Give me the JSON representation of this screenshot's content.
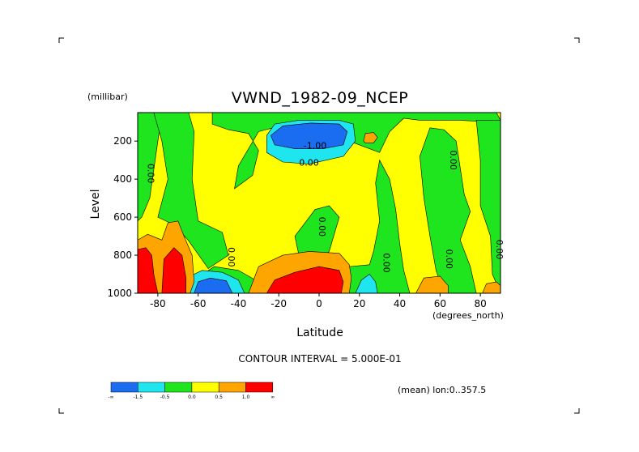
{
  "chart_data": {
    "type": "heatmap",
    "title": "VWND_1982-09_NCEP",
    "xlabel": "Latitude",
    "ylabel": "Level",
    "x_units": "(degrees_north)",
    "y_units": "(millibar)",
    "xlim": [
      -90,
      90
    ],
    "ylim": [
      1000,
      50
    ],
    "x_ticks": [
      "-80",
      "-60",
      "-40",
      "-20",
      "0",
      "20",
      "40",
      "60",
      "80"
    ],
    "x_tick_values": [
      -80,
      -60,
      -40,
      -20,
      0,
      20,
      40,
      60,
      80
    ],
    "y_ticks": [
      "200",
      "400",
      "600",
      "800",
      "1000"
    ],
    "y_tick_values": [
      200,
      400,
      600,
      800,
      1000
    ],
    "contour_interval_label": "CONTOUR INTERVAL = 5.000E-01",
    "subtitle_right": "(mean) lon:0..357.5",
    "colorbar": {
      "labels": [
        "-∞",
        "-1.5",
        "-0.5",
        "0.0",
        "0.5",
        "1.0",
        "∞"
      ],
      "colors": [
        "#1a6cf0",
        "#1ee5ee",
        "#1ee51e",
        "#ffff00",
        "#ffa500",
        "#ff0000"
      ]
    },
    "contour_labels": [
      {
        "text": "0.00",
        "x": -85,
        "y": 370
      },
      {
        "text": "-1.00",
        "x": -2,
        "y": 240
      },
      {
        "text": "0.00",
        "x": -5,
        "y": 330
      },
      {
        "text": "0.00",
        "x": 0,
        "y": 650
      },
      {
        "text": "0.00",
        "x": -45,
        "y": 810
      },
      {
        "text": "0.00",
        "x": 32,
        "y": 840
      },
      {
        "text": "0.00",
        "x": 63,
        "y": 820
      },
      {
        "text": "0.00",
        "x": 65,
        "y": 300
      },
      {
        "text": "0.00",
        "x": 88,
        "y": 770
      }
    ],
    "regions": [
      {
        "level": "0.0 to 0.5",
        "color": "#ffff00",
        "points": [
          [
            -90,
            50
          ],
          [
            90,
            50
          ],
          [
            90,
            1000
          ],
          [
            -90,
            1000
          ]
        ]
      },
      {
        "level": "-0.5 to 0.0",
        "color": "#1ee51e",
        "points": [
          [
            -90,
            50
          ],
          [
            -78,
            50
          ],
          [
            -80,
            200
          ],
          [
            -84,
            500
          ],
          [
            -88,
            600
          ],
          [
            -90,
            620
          ]
        ]
      },
      {
        "level": "-0.5 to 0.0",
        "color": "#1ee51e",
        "points": [
          [
            -82,
            50
          ],
          [
            -65,
            40
          ],
          [
            -62,
            150
          ],
          [
            -63,
            400
          ],
          [
            -60,
            620
          ],
          [
            -48,
            680
          ],
          [
            -45,
            800
          ],
          [
            -55,
            870
          ],
          [
            -65,
            720
          ],
          [
            -72,
            640
          ],
          [
            -80,
            600
          ],
          [
            -75,
            400
          ],
          [
            -78,
            200
          ]
        ]
      },
      {
        "level": "-0.5 to 0.0",
        "color": "#1ee51e",
        "points": [
          [
            -53,
            50
          ],
          [
            88,
            50
          ],
          [
            90,
            90
          ],
          [
            85,
            100
          ],
          [
            70,
            90
          ],
          [
            50,
            90
          ],
          [
            42,
            80
          ],
          [
            35,
            150
          ],
          [
            30,
            260
          ],
          [
            15,
            200
          ],
          [
            -12,
            100
          ],
          [
            -30,
            150
          ],
          [
            -40,
            330
          ],
          [
            -42,
            450
          ],
          [
            -33,
            380
          ],
          [
            -30,
            250
          ],
          [
            -35,
            160
          ],
          [
            -45,
            140
          ],
          [
            -53,
            110
          ]
        ]
      },
      {
        "level": "-0.5 to 0.0",
        "color": "#1ee51e",
        "points": [
          [
            -62,
            930
          ],
          [
            -52,
            860
          ],
          [
            -40,
            880
          ],
          [
            -30,
            940
          ],
          [
            -28,
            1000
          ],
          [
            -62,
            1000
          ]
        ]
      },
      {
        "level": "-0.5 to 0.0",
        "color": "#1ee51e",
        "points": [
          [
            -12,
            700
          ],
          [
            -2,
            560
          ],
          [
            5,
            540
          ],
          [
            10,
            600
          ],
          [
            5,
            780
          ],
          [
            0,
            830
          ],
          [
            -10,
            800
          ]
        ]
      },
      {
        "level": "-0.5 to 0.0",
        "color": "#1ee51e",
        "points": [
          [
            10,
            1000
          ],
          [
            15,
            860
          ],
          [
            25,
            850
          ],
          [
            27,
            780
          ],
          [
            30,
            620
          ],
          [
            28,
            420
          ],
          [
            30,
            300
          ],
          [
            35,
            400
          ],
          [
            38,
            560
          ],
          [
            40,
            740
          ],
          [
            42,
            880
          ],
          [
            45,
            1000
          ]
        ]
      },
      {
        "level": "-0.5 to 0.0",
        "color": "#1ee51e",
        "points": [
          [
            50,
            280
          ],
          [
            55,
            130
          ],
          [
            62,
            140
          ],
          [
            68,
            200
          ],
          [
            72,
            480
          ],
          [
            75,
            570
          ],
          [
            70,
            720
          ],
          [
            75,
            860
          ],
          [
            78,
            1000
          ],
          [
            62,
            1000
          ],
          [
            58,
            880
          ],
          [
            55,
            700
          ],
          [
            52,
            500
          ]
        ]
      },
      {
        "level": "-0.5 to 0.0",
        "color": "#1ee51e",
        "points": [
          [
            78,
            90
          ],
          [
            90,
            90
          ],
          [
            90,
            1000
          ],
          [
            86,
            900
          ],
          [
            85,
            700
          ],
          [
            80,
            540
          ],
          [
            80,
            300
          ]
        ]
      },
      {
        "level": "-1.5 to -0.5",
        "color": "#1ee5ee",
        "points": [
          [
            -26,
            170
          ],
          [
            -22,
            110
          ],
          [
            -10,
            90
          ],
          [
            10,
            90
          ],
          [
            17,
            110
          ],
          [
            18,
            200
          ],
          [
            12,
            280
          ],
          [
            -5,
            320
          ],
          [
            -18,
            310
          ],
          [
            -26,
            260
          ]
        ]
      },
      {
        "level": "-1.5 to -0.5",
        "color": "#1ee5ee",
        "points": [
          [
            -66,
            1000
          ],
          [
            -64,
            910
          ],
          [
            -58,
            880
          ],
          [
            -48,
            890
          ],
          [
            -40,
            930
          ],
          [
            -37,
            1000
          ]
        ]
      },
      {
        "level": "-1.5 to -0.5",
        "color": "#1ee5ee",
        "points": [
          [
            18,
            1000
          ],
          [
            21,
            930
          ],
          [
            25,
            900
          ],
          [
            28,
            940
          ],
          [
            29,
            1000
          ]
        ]
      },
      {
        "level": "< -1.5",
        "color": "#1a6cf0",
        "points": [
          [
            -24,
            170
          ],
          [
            -18,
            120
          ],
          [
            -4,
            105
          ],
          [
            10,
            110
          ],
          [
            14,
            150
          ],
          [
            12,
            220
          ],
          [
            2,
            240
          ],
          [
            -12,
            240
          ],
          [
            -22,
            220
          ]
        ]
      },
      {
        "level": "< -1.5",
        "color": "#1a6cf0",
        "points": [
          [
            -62,
            1000
          ],
          [
            -60,
            940
          ],
          [
            -54,
            920
          ],
          [
            -46,
            935
          ],
          [
            -43,
            1000
          ]
        ]
      },
      {
        "level": "0.5 to 1.0",
        "color": "#ffa500",
        "points": [
          [
            -90,
            1000
          ],
          [
            -90,
            720
          ],
          [
            -85,
            690
          ],
          [
            -78,
            720
          ],
          [
            -75,
            630
          ],
          [
            -70,
            620
          ],
          [
            -67,
            700
          ],
          [
            -63,
            800
          ],
          [
            -62,
            940
          ],
          [
            -64,
            1000
          ]
        ]
      },
      {
        "level": "0.5 to 1.0",
        "color": "#ffa500",
        "points": [
          [
            -35,
            1000
          ],
          [
            -30,
            860
          ],
          [
            -18,
            800
          ],
          [
            -5,
            780
          ],
          [
            10,
            790
          ],
          [
            15,
            850
          ],
          [
            16,
            920
          ],
          [
            15,
            1000
          ]
        ]
      },
      {
        "level": "0.5 to 1.0",
        "color": "#ffa500",
        "points": [
          [
            48,
            1000
          ],
          [
            52,
            920
          ],
          [
            60,
            910
          ],
          [
            64,
            960
          ],
          [
            64,
            1000
          ]
        ]
      },
      {
        "level": "0.5 to 1.0",
        "color": "#ffa500",
        "points": [
          [
            81,
            1000
          ],
          [
            83,
            950
          ],
          [
            88,
            940
          ],
          [
            90,
            960
          ],
          [
            90,
            1000
          ]
        ]
      },
      {
        "level": "0.5 to 1.0",
        "color": "#ffa500",
        "points": [
          [
            22,
            200
          ],
          [
            23,
            160
          ],
          [
            27,
            155
          ],
          [
            29,
            180
          ],
          [
            27,
            210
          ],
          [
            23,
            210
          ]
        ]
      },
      {
        "level": "> 1.0",
        "color": "#ff0000",
        "points": [
          [
            -90,
            1000
          ],
          [
            -90,
            770
          ],
          [
            -86,
            760
          ],
          [
            -83,
            800
          ],
          [
            -82,
            900
          ],
          [
            -80,
            1000
          ]
        ]
      },
      {
        "level": "> 1.0",
        "color": "#ff0000",
        "points": [
          [
            -78,
            1000
          ],
          [
            -77,
            820
          ],
          [
            -72,
            760
          ],
          [
            -68,
            800
          ],
          [
            -66,
            920
          ],
          [
            -66,
            1000
          ]
        ]
      },
      {
        "level": "> 1.0",
        "color": "#ff0000",
        "points": [
          [
            -26,
            1000
          ],
          [
            -22,
            930
          ],
          [
            -12,
            890
          ],
          [
            0,
            860
          ],
          [
            10,
            880
          ],
          [
            12,
            940
          ],
          [
            11,
            1000
          ]
        ]
      }
    ]
  }
}
